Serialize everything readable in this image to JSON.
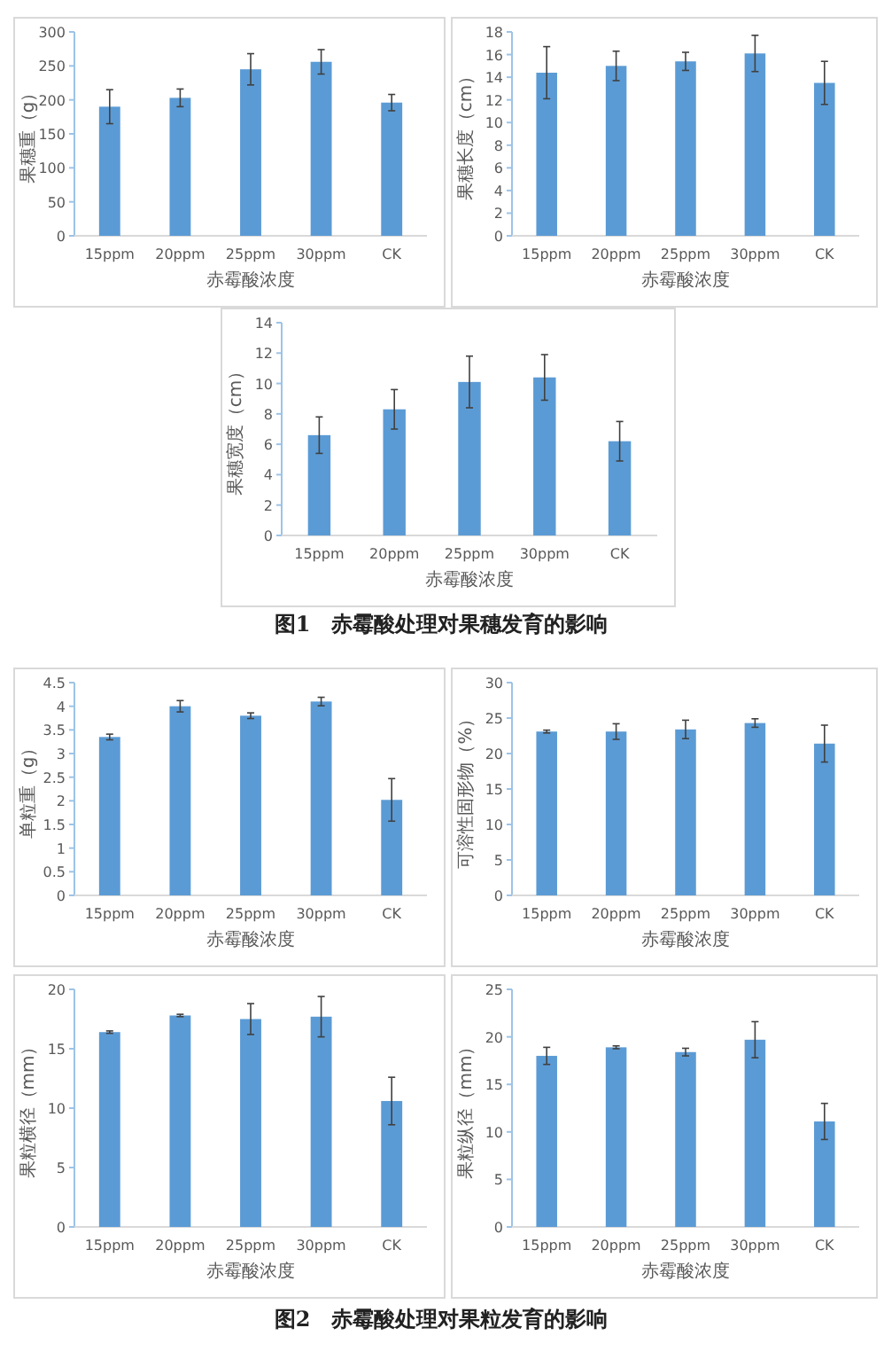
{
  "chart_data": [
    {
      "type": "bar",
      "categories": [
        "15ppm",
        "20ppm",
        "25ppm",
        "30ppm",
        "CK"
      ],
      "values": [
        190,
        203,
        245,
        256,
        196
      ],
      "errors": [
        25,
        13,
        23,
        18,
        12
      ],
      "color": "#5b9bd5",
      "xlabel": "赤霉酸浓度",
      "ylabel": "果穗重（g）",
      "ylim": [
        0,
        300
      ],
      "yticks": [
        0,
        50,
        100,
        150,
        200,
        250,
        300
      ]
    },
    {
      "type": "bar",
      "categories": [
        "15ppm",
        "20ppm",
        "25ppm",
        "30ppm",
        "CK"
      ],
      "values": [
        14.4,
        15.0,
        15.4,
        16.1,
        13.5
      ],
      "errors": [
        2.3,
        1.3,
        0.8,
        1.6,
        1.9
      ],
      "color": "#5b9bd5",
      "xlabel": "赤霉酸浓度",
      "ylabel": "果穗长度（cm）",
      "ylim": [
        0,
        18
      ],
      "yticks": [
        0,
        2,
        4,
        6,
        8,
        10,
        12,
        14,
        16,
        18
      ]
    },
    {
      "type": "bar",
      "categories": [
        "15ppm",
        "20ppm",
        "25ppm",
        "30ppm",
        "CK"
      ],
      "values": [
        6.6,
        8.3,
        10.1,
        10.4,
        6.2
      ],
      "errors": [
        1.2,
        1.3,
        1.7,
        1.5,
        1.3
      ],
      "color": "#5b9bd5",
      "xlabel": "赤霉酸浓度",
      "ylabel": "果穗宽度（cm）",
      "ylim": [
        0,
        14
      ],
      "yticks": [
        0,
        2,
        4,
        6,
        8,
        10,
        12,
        14
      ],
      "annotations": [
        "图1　赤霉酸处理对果穗发育的影响"
      ]
    },
    {
      "type": "bar",
      "categories": [
        "15ppm",
        "20ppm",
        "25ppm",
        "30ppm",
        "CK"
      ],
      "values": [
        3.35,
        4.0,
        3.8,
        4.1,
        2.02
      ],
      "errors": [
        0.06,
        0.12,
        0.06,
        0.09,
        0.45
      ],
      "color": "#5b9bd5",
      "xlabel": "赤霉酸浓度",
      "ylabel": "单粒重（g）",
      "ylim": [
        0,
        4.5
      ],
      "yticks": [
        0,
        0.5,
        1,
        1.5,
        2,
        2.5,
        3,
        3.5,
        4,
        4.5
      ]
    },
    {
      "type": "bar",
      "categories": [
        "15ppm",
        "20ppm",
        "25ppm",
        "30ppm",
        "CK"
      ],
      "values": [
        23.1,
        23.1,
        23.4,
        24.3,
        21.4
      ],
      "errors": [
        0.2,
        1.1,
        1.3,
        0.6,
        2.6
      ],
      "color": "#5b9bd5",
      "xlabel": "赤霉酸浓度",
      "ylabel": "可溶性固形物（%）",
      "ylim": [
        0,
        30
      ],
      "yticks": [
        0,
        5,
        10,
        15,
        20,
        25,
        30
      ]
    },
    {
      "type": "bar",
      "categories": [
        "15ppm",
        "20ppm",
        "25ppm",
        "30ppm",
        "CK"
      ],
      "values": [
        16.4,
        17.8,
        17.5,
        17.7,
        10.6
      ],
      "errors": [
        0.1,
        0.1,
        1.3,
        1.7,
        2.0
      ],
      "color": "#5b9bd5",
      "xlabel": "赤霉酸浓度",
      "ylabel": "果粒横径（mm）",
      "ylim": [
        0,
        20
      ],
      "yticks": [
        0,
        5,
        10,
        15,
        20
      ]
    },
    {
      "type": "bar",
      "categories": [
        "15ppm",
        "20ppm",
        "25ppm",
        "30ppm",
        "CK"
      ],
      "values": [
        18.0,
        18.9,
        18.4,
        19.7,
        11.1
      ],
      "errors": [
        0.9,
        0.15,
        0.4,
        1.9,
        1.9
      ],
      "color": "#5b9bd5",
      "xlabel": "赤霉酸浓度",
      "ylabel": "果粒纵径（mm）",
      "ylim": [
        0,
        25
      ],
      "yticks": [
        0,
        5,
        10,
        15,
        20,
        25
      ],
      "annotations": [
        "图2　赤霉酸处理对果粒发育的影响"
      ]
    }
  ]
}
